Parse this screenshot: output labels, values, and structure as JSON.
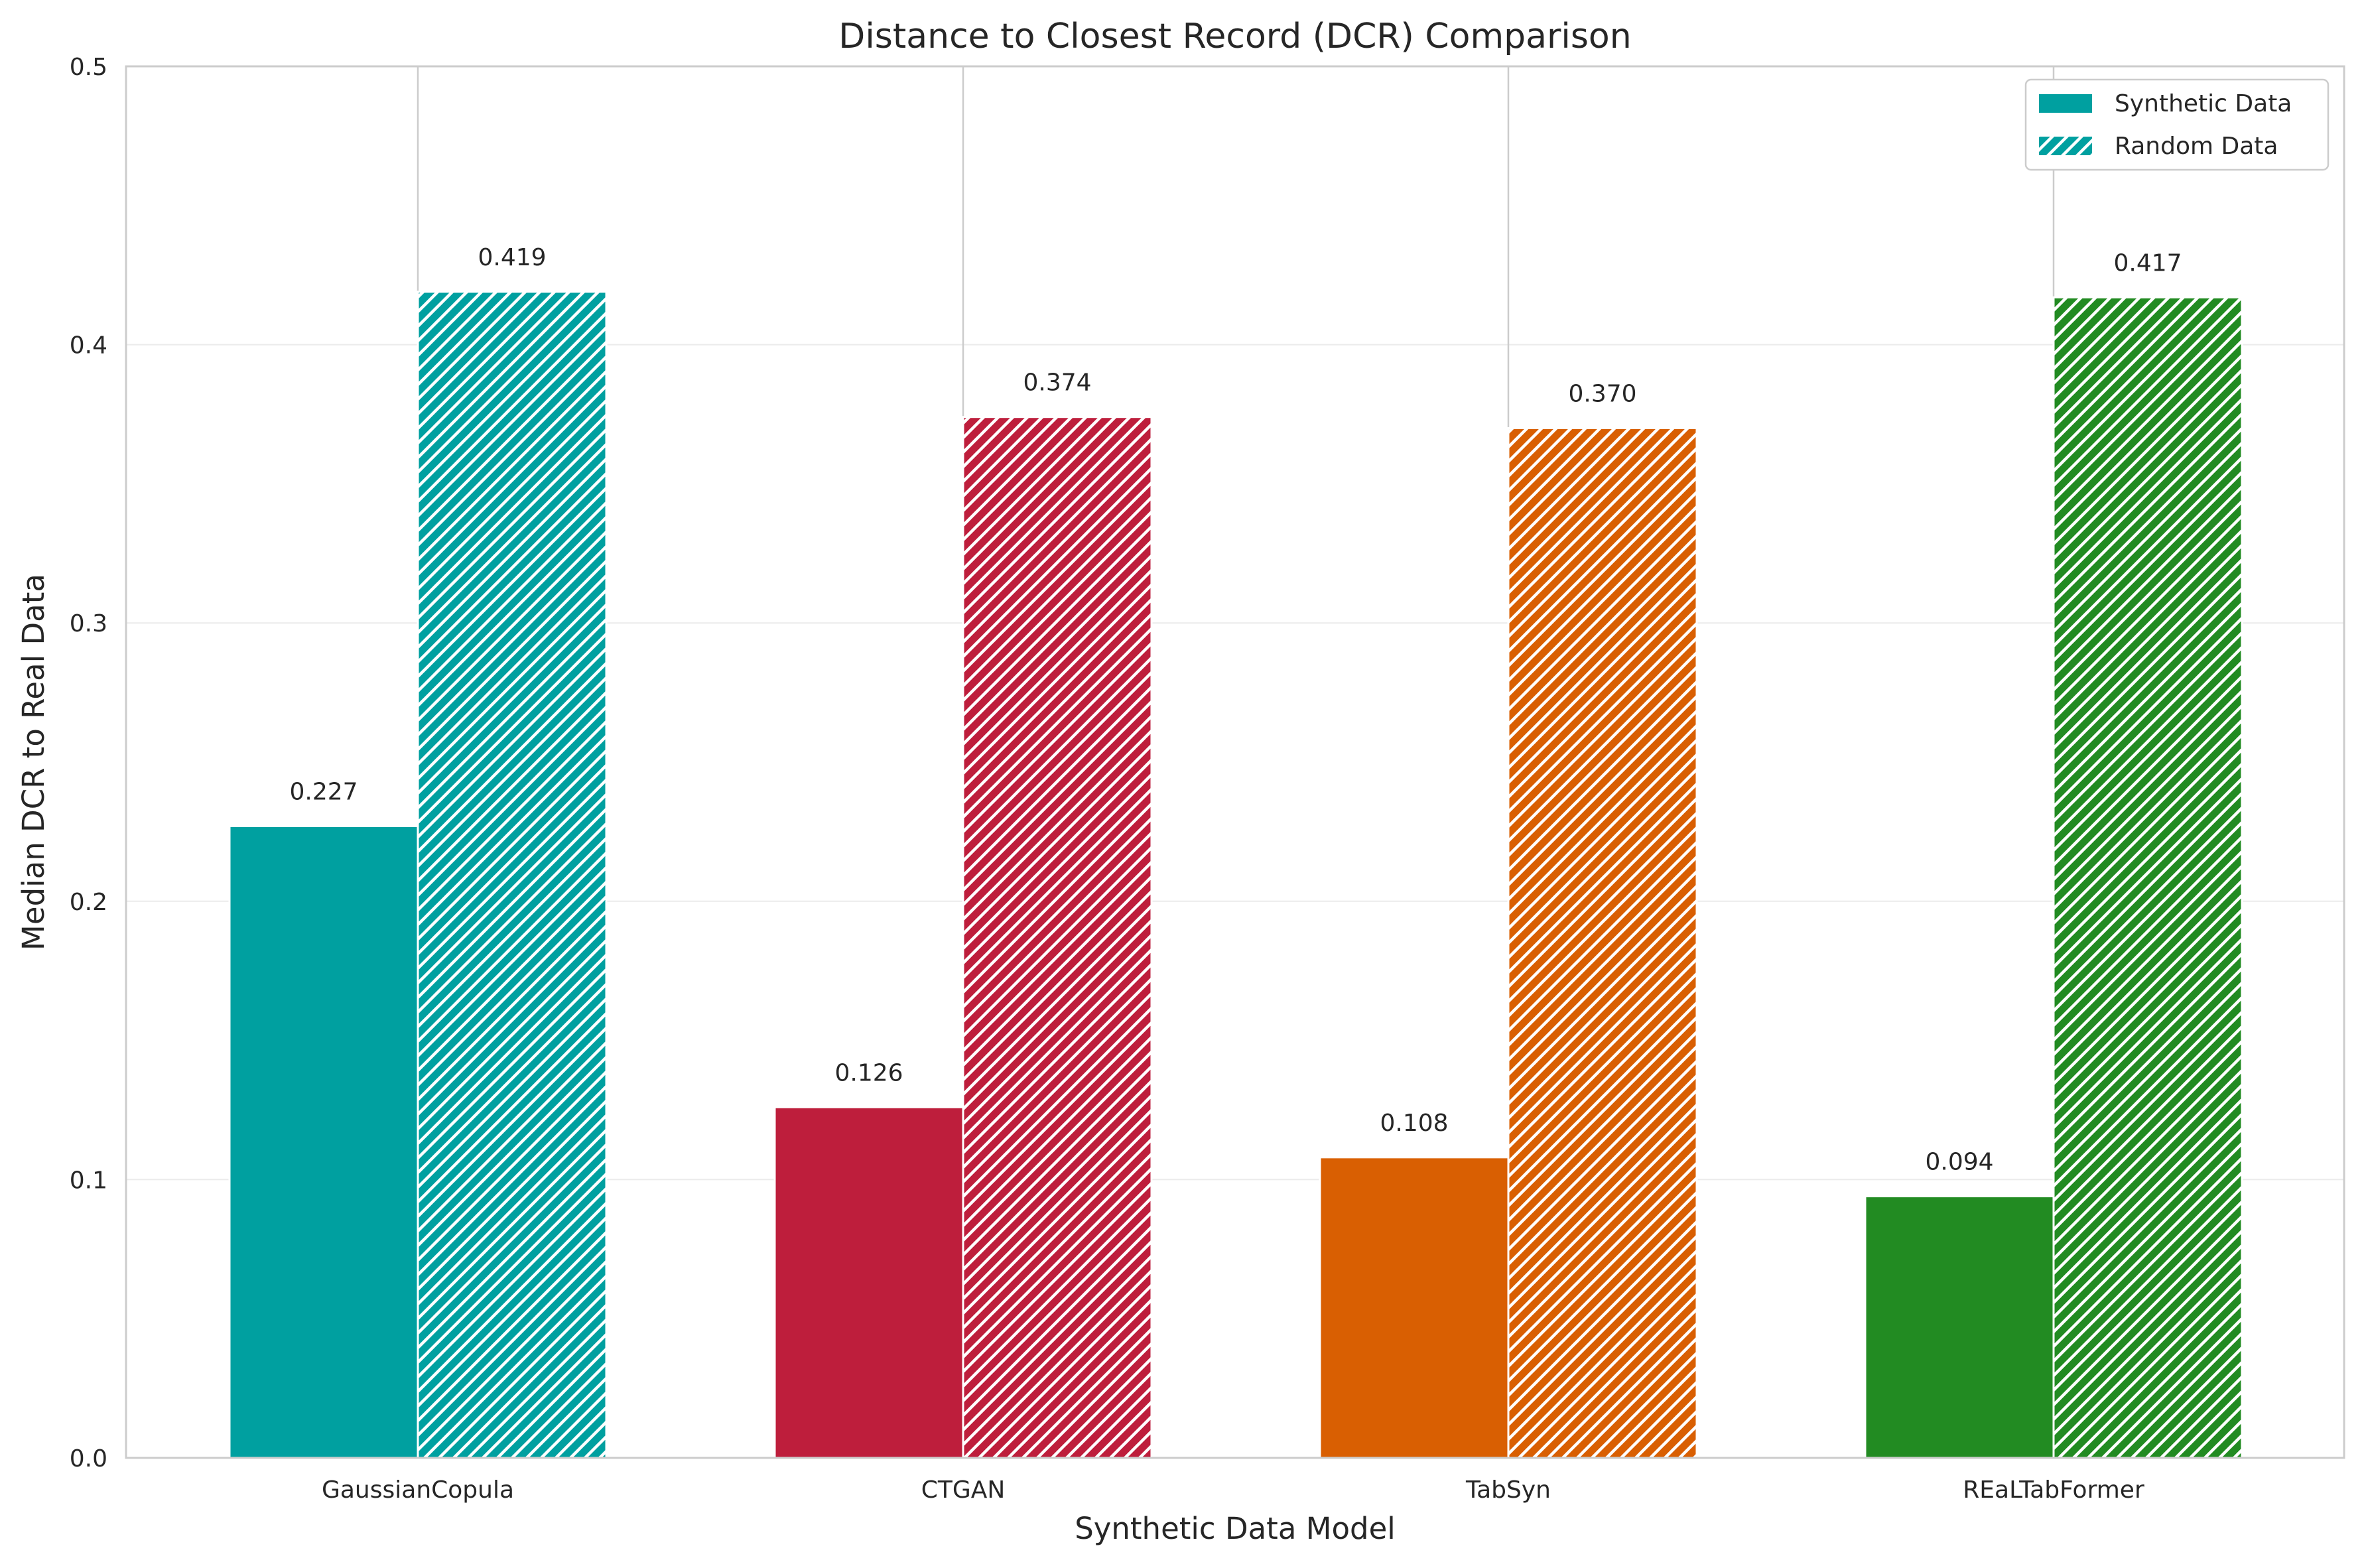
{
  "chart_data": {
    "type": "bar",
    "title": "Distance to Closest Record (DCR) Comparison",
    "xlabel": "Synthetic Data Model",
    "ylabel": "Median DCR to Real Data",
    "categories": [
      "GaussianCopula",
      "CTGAN",
      "TabSyn",
      "REaLTabFormer"
    ],
    "series": [
      {
        "name": "Synthetic Data",
        "values": [
          0.227,
          0.126,
          0.108,
          0.094
        ],
        "pattern": "solid"
      },
      {
        "name": "Random Data",
        "values": [
          0.419,
          0.374,
          0.37,
          0.417
        ],
        "pattern": "hatched"
      }
    ],
    "value_labels": {
      "Synthetic Data": [
        "0.227",
        "0.126",
        "0.108",
        "0.094"
      ],
      "Random Data": [
        "0.419",
        "0.374",
        "0.370",
        "0.417"
      ]
    },
    "category_colors": [
      "#00a0a0",
      "#be1e3c",
      "#d95f02",
      "#228b22"
    ],
    "ylim": [
      0,
      0.5
    ],
    "yticks": [
      "0.0",
      "0.1",
      "0.2",
      "0.3",
      "0.4",
      "0.5"
    ],
    "grid": true,
    "legend_position": "top-right"
  }
}
